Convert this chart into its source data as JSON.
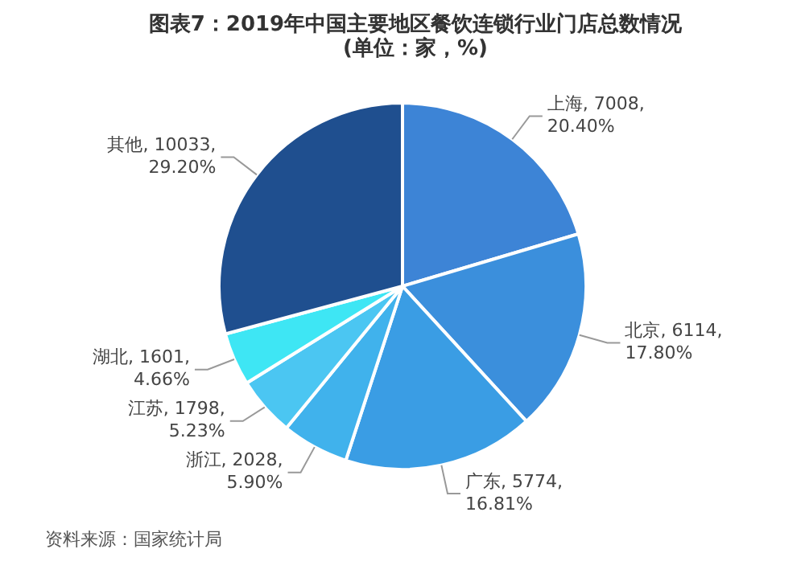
{
  "chart_data": {
    "type": "pie",
    "title": "图表7：2019年中国主要地区餐饮连锁行业门店总数情况(单位：家，%)",
    "categories": [
      "上海",
      "北京",
      "广东",
      "浙江",
      "江苏",
      "湖北",
      "其他"
    ],
    "values": [
      7008,
      6114,
      5774,
      2028,
      1798,
      1601,
      10033
    ],
    "value_labels": [
      "7008,\n20.40%",
      "6114,\n17.80%",
      "5774,\n16.81%",
      "2028,\n5.90%",
      "1798,\n5.23%",
      "1601,\n4.66%",
      "10033,\n29.20%"
    ],
    "colors": [
      "#3d84d6",
      "#3b8fdc",
      "#3a9de4",
      "#40b2ec",
      "#4bc6f2",
      "#3ee6f4",
      "#1f4f8f"
    ],
    "annotations": [
      "资料来源：国家统计局"
    ],
    "legend": false
  }
}
